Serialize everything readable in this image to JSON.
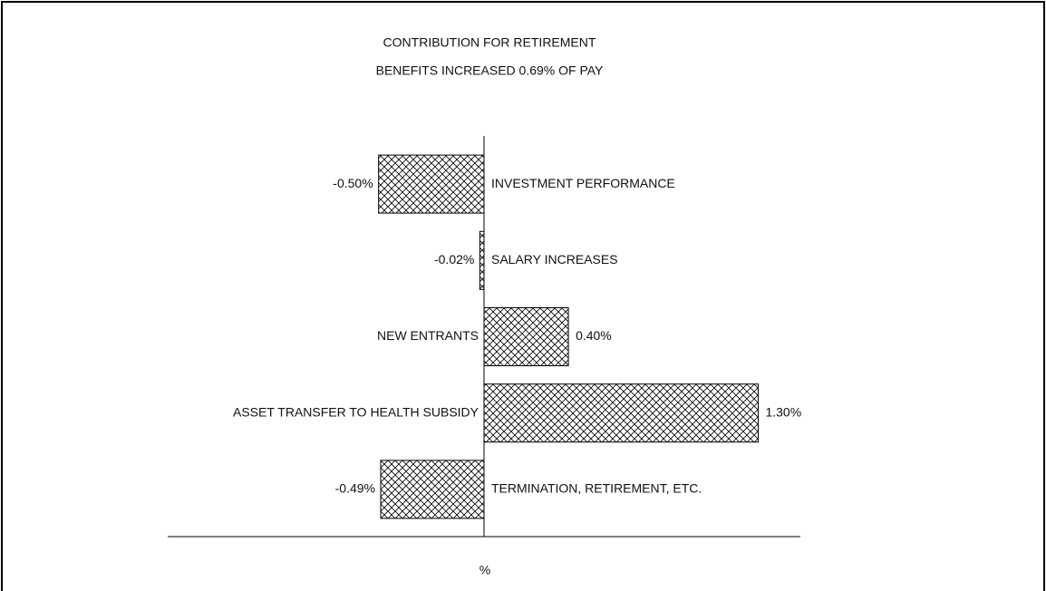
{
  "chart_data": {
    "type": "bar",
    "orientation": "horizontal",
    "title": "CONTRIBUTION FOR RETIREMENT",
    "subtitle": "BENEFITS INCREASED 0.69% OF PAY",
    "categories": [
      "INVESTMENT PERFORMANCE",
      "SALARY INCREASES",
      "NEW ENTRANTS",
      "ASSET TRANSFER TO HEALTH SUBSIDY",
      "TERMINATION, RETIREMENT, ETC."
    ],
    "values": [
      -0.5,
      -0.02,
      0.4,
      1.3,
      -0.49
    ],
    "value_labels": [
      "-0.50%",
      "-0.02%",
      "0.40%",
      "1.30%",
      "-0.49%"
    ],
    "xlabel": "%",
    "xlim": [
      -1.5,
      1.5
    ],
    "color": "#000000"
  }
}
